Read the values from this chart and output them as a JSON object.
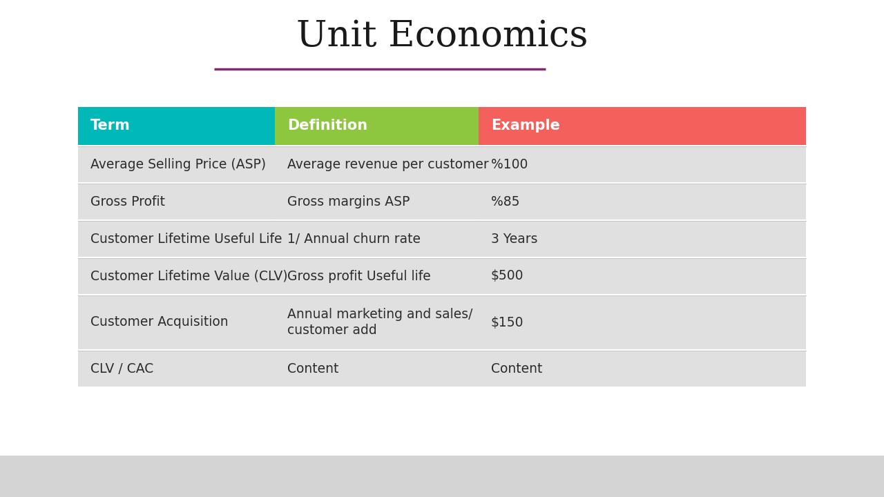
{
  "title": "Unit Economics",
  "title_fontsize": 38,
  "title_color": "#1a1a1a",
  "underline_color": "#7b2d6e",
  "bg_color": "#ffffff",
  "footer_color": "#d4d4d4",
  "header_labels": [
    "Term",
    "Definition",
    "Example"
  ],
  "header_colors": [
    "#00b8b8",
    "#8dc63f",
    "#f4615c"
  ],
  "header_text_color": "#ffffff",
  "header_fontsize": 15,
  "row_bg_color": "#e0e0e0",
  "row_text_color": "#2c2c2c",
  "row_fontsize": 13.5,
  "rows": [
    [
      "Average Selling Price (ASP)",
      "Average revenue per customer",
      "%100"
    ],
    [
      "Gross Profit",
      "Gross margins ASP",
      "%85"
    ],
    [
      "Customer Lifetime Useful Life",
      "1/ Annual churn rate",
      "3 Years"
    ],
    [
      "Customer Lifetime Value (CLV)",
      "Gross profit Useful life",
      "$500"
    ],
    [
      "Customer Acquisition",
      "Annual marketing and sales/\ncustomer add",
      "$150"
    ],
    [
      "CLV / CAC",
      "Content",
      "Content"
    ]
  ]
}
